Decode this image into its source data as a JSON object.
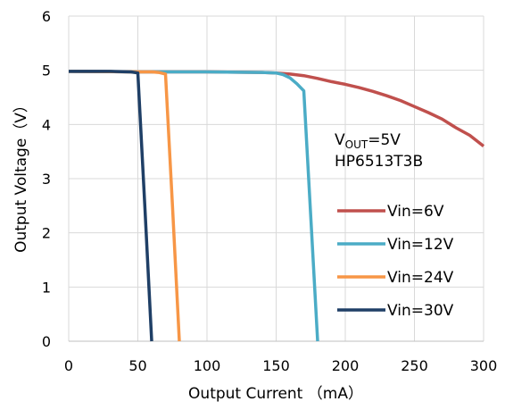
{
  "chart_data": {
    "type": "line",
    "title": "",
    "xlabel": "Output Current （mA）",
    "ylabel": "Output Voltage（V）",
    "xlim": [
      0,
      300
    ],
    "ylim": [
      0,
      6
    ],
    "xticks": [
      "0",
      "50",
      "100",
      "150",
      "200",
      "250",
      "300"
    ],
    "yticks": [
      "0",
      "1",
      "2",
      "3",
      "4",
      "5",
      "6"
    ],
    "grid": true,
    "legend_position": "right",
    "annotation": {
      "vout_prefix": "V",
      "vout_subscript": "OUT",
      "vout_suffix": "=5V",
      "part": "HP6513T3B"
    },
    "series": [
      {
        "name": "Vin=6V",
        "color": "#c0504d",
        "x": [
          0,
          50,
          100,
          140,
          150,
          160,
          170,
          180,
          190,
          200,
          210,
          220,
          230,
          240,
          250,
          260,
          270,
          280,
          290,
          300
        ],
        "y": [
          4.98,
          4.97,
          4.97,
          4.96,
          4.95,
          4.93,
          4.9,
          4.85,
          4.79,
          4.74,
          4.68,
          4.61,
          4.53,
          4.44,
          4.33,
          4.22,
          4.1,
          3.94,
          3.8,
          3.6
        ]
      },
      {
        "name": "Vin=12V",
        "color": "#4bacc6",
        "x": [
          0,
          50,
          100,
          140,
          150,
          155,
          160,
          165,
          170,
          175,
          180
        ],
        "y": [
          4.98,
          4.97,
          4.97,
          4.96,
          4.95,
          4.92,
          4.86,
          4.75,
          4.62,
          2.3,
          0
        ]
      },
      {
        "name": "Vin=24V",
        "color": "#f79646",
        "x": [
          0,
          50,
          60,
          65,
          70,
          75,
          80
        ],
        "y": [
          4.98,
          4.97,
          4.97,
          4.96,
          4.93,
          2.5,
          0
        ]
      },
      {
        "name": "Vin=30V",
        "color": "#1f3f66",
        "x": [
          0,
          30,
          45,
          50,
          55,
          60
        ],
        "y": [
          4.98,
          4.98,
          4.97,
          4.95,
          2.5,
          0
        ]
      }
    ]
  }
}
